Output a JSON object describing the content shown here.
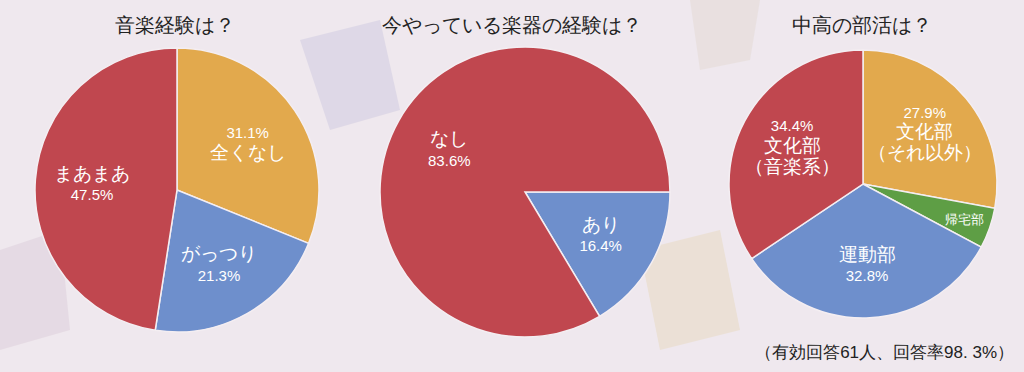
{
  "chart_data": [
    {
      "type": "pie",
      "title": "音楽経験は？",
      "categories": [
        "全くなし",
        "がっつり",
        "まあまあ"
      ],
      "values": [
        31.1,
        21.3,
        47.5
      ],
      "value_labels": [
        "31.1%",
        "21.3%",
        "47.5%"
      ],
      "colors": [
        "#e2a94d",
        "#6e8fcc",
        "#c0474f"
      ],
      "data_labels": true
    },
    {
      "type": "pie",
      "title": "今やっている楽器の経験は？",
      "categories": [
        "あり",
        "なし"
      ],
      "values": [
        16.4,
        83.6
      ],
      "value_labels": [
        "16.4%",
        "83.6%"
      ],
      "colors": [
        "#6e8fcc",
        "#c0474f"
      ],
      "data_labels": true
    },
    {
      "type": "pie",
      "title": "中高の部活は？",
      "categories": [
        "文化部\n（それ以外）",
        "帰宅部",
        "運動部",
        "文化部\n（音楽系）"
      ],
      "values": [
        27.9,
        4.9,
        32.8,
        34.4
      ],
      "value_labels": [
        "27.9%",
        null,
        "32.8%",
        "34.4%"
      ],
      "colors": [
        "#e2a94d",
        "#5e9e45",
        "#6e8fcc",
        "#c0474f"
      ],
      "data_labels": true
    }
  ],
  "note": "（有効回答61人、回答率98. 3%）"
}
